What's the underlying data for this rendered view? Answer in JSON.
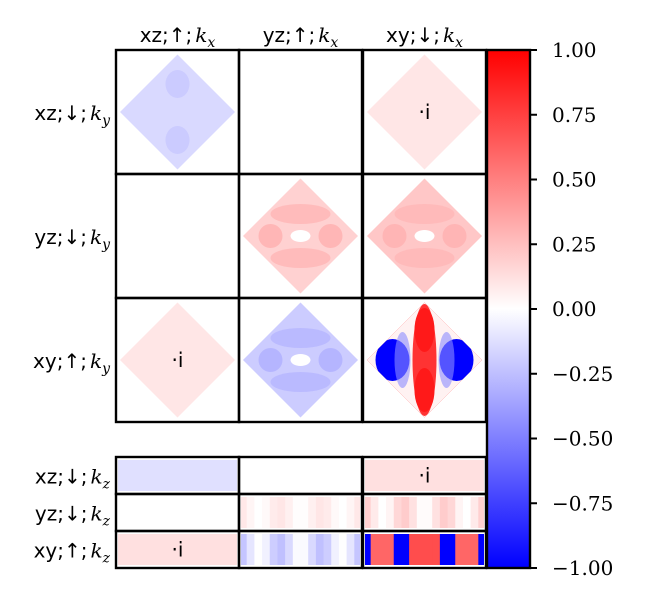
{
  "chart_data": {
    "type": "heatmap",
    "title": "",
    "columns": [
      {
        "base": "xz;↑;",
        "sub": "k",
        "idx": "x"
      },
      {
        "base": "yz;↑;",
        "sub": "k",
        "idx": "x"
      },
      {
        "base": "xy;↓;",
        "sub": "k",
        "idx": "x"
      }
    ],
    "rows_ky": [
      {
        "base": "xz;↓;",
        "sub": "k",
        "idx": "y"
      },
      {
        "base": "yz;↓;",
        "sub": "k",
        "idx": "y"
      },
      {
        "base": "xy;↑;",
        "sub": "k",
        "idx": "y"
      }
    ],
    "rows_kz": [
      {
        "base": "xz;↓;",
        "sub": "k",
        "idx": "z"
      },
      {
        "base": "yz;↓;",
        "sub": "k",
        "idx": "z"
      },
      {
        "base": "xy;↑;",
        "sub": "k",
        "idx": "z"
      }
    ],
    "panels_ky": [
      [
        {
          "pattern": "blue-soft",
          "amplitude": -0.15,
          "annotation": ""
        },
        {
          "pattern": "empty",
          "amplitude": 0,
          "annotation": ""
        },
        {
          "pattern": "pink-soft",
          "amplitude": 0.1,
          "annotation": "·i"
        }
      ],
      [
        {
          "pattern": "empty",
          "amplitude": 0,
          "annotation": ""
        },
        {
          "pattern": "pink-ring",
          "amplitude": 0.18,
          "annotation": ""
        },
        {
          "pattern": "pink-ring",
          "amplitude": 0.22,
          "annotation": ""
        }
      ],
      [
        {
          "pattern": "pink-soft",
          "amplitude": 0.1,
          "annotation": "·i"
        },
        {
          "pattern": "blue-ring",
          "amplitude": -0.2,
          "annotation": ""
        },
        {
          "pattern": "strong-cross",
          "amplitude": 1.0,
          "annotation": ""
        }
      ]
    ],
    "panels_kz": [
      [
        {
          "pattern": "blue-band",
          "amplitude": -0.12,
          "annotation": ""
        },
        {
          "pattern": "empty",
          "amplitude": 0,
          "annotation": ""
        },
        {
          "pattern": "pink-band",
          "amplitude": 0.12,
          "annotation": "·i"
        }
      ],
      [
        {
          "pattern": "empty",
          "amplitude": 0,
          "annotation": ""
        },
        {
          "pattern": "pink-stripes-light",
          "amplitude": 0.1,
          "annotation": ""
        },
        {
          "pattern": "pink-stripes",
          "amplitude": 0.2,
          "annotation": ""
        }
      ],
      [
        {
          "pattern": "pink-band",
          "amplitude": 0.12,
          "annotation": "·i"
        },
        {
          "pattern": "blue-stripes",
          "amplitude": -0.25,
          "annotation": ""
        },
        {
          "pattern": "strong-stripes",
          "amplitude": 1.0,
          "annotation": ""
        }
      ]
    ],
    "colorbar": {
      "min": -1.0,
      "max": 1.0,
      "colormap": "bwr",
      "ticks": [
        1.0,
        0.75,
        0.5,
        0.25,
        0.0,
        -0.25,
        -0.5,
        -0.75,
        -1.0
      ],
      "tick_labels": [
        "1.00",
        "0.75",
        "0.50",
        "0.25",
        "0.00",
        "−0.25",
        "−0.50",
        "−0.75",
        "−1.00"
      ]
    },
    "colors": {
      "negative": "#0000ff",
      "zero": "#ffffff",
      "positive": "#ff0000"
    }
  }
}
